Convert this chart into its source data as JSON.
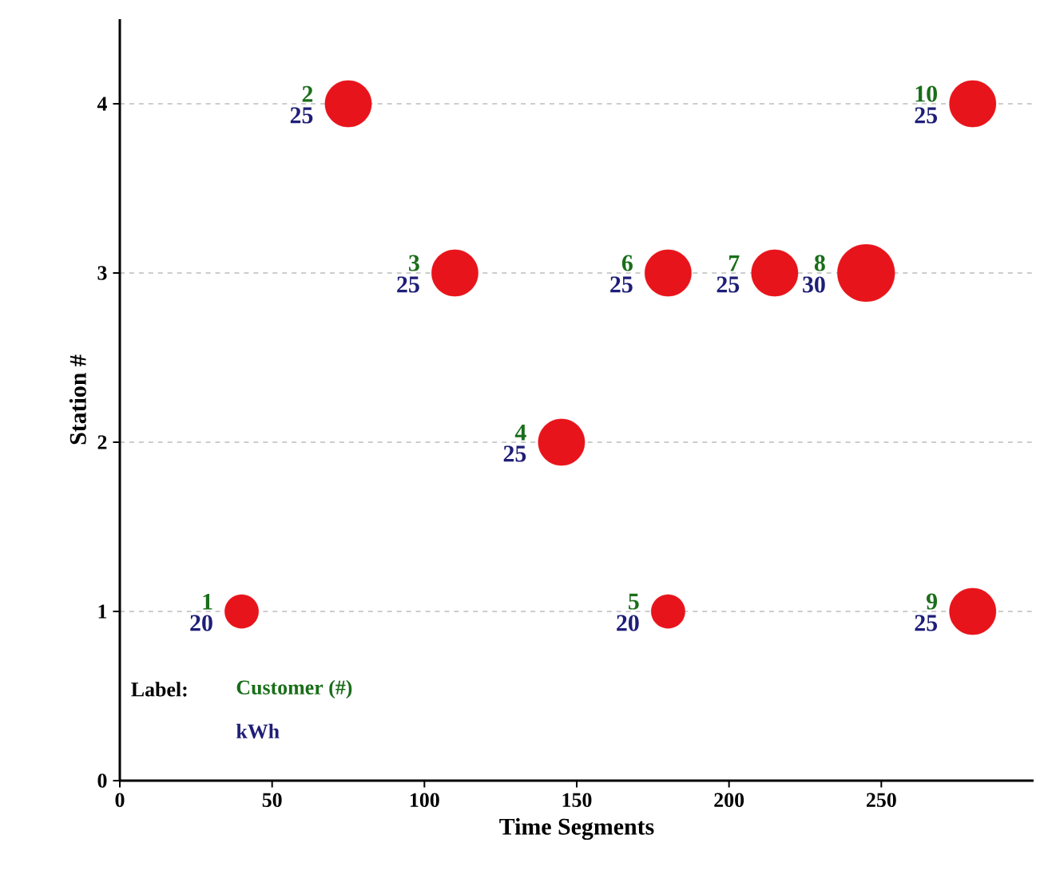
{
  "chart_data": {
    "type": "bubble",
    "xlabel": "Time Segments",
    "ylabel": "Station #",
    "x": [
      40,
      75,
      110,
      145,
      180,
      180,
      215,
      245,
      280,
      280
    ],
    "values": [
      1,
      4,
      3,
      2,
      1,
      3,
      3,
      3,
      1,
      4
    ],
    "sizes": [
      0.35,
      0.66,
      0.66,
      0.66,
      0.35,
      0.66,
      0.66,
      1,
      0.66,
      0.66
    ],
    "color": "#e8141b",
    "marker": "circle",
    "grid": "y",
    "xlim": [
      0,
      300
    ],
    "ylim": [
      0,
      4.5
    ],
    "xticks": [
      0,
      50,
      100,
      150,
      200,
      250
    ],
    "yticks": [
      0,
      1,
      2,
      3,
      4
    ],
    "annotations": [
      "Label:",
      "Customer (#)",
      "kWh",
      {
        "text": "1",
        "x": 40,
        "y": 1
      },
      {
        "text": "20",
        "x": 40,
        "y": 1
      },
      {
        "text": "2",
        "x": 75,
        "y": 4
      },
      {
        "text": "25",
        "x": 75,
        "y": 4
      },
      {
        "text": "3",
        "x": 110,
        "y": 3
      },
      {
        "text": "25",
        "x": 110,
        "y": 3
      },
      {
        "text": "4",
        "x": 145,
        "y": 2
      },
      {
        "text": "25",
        "x": 145,
        "y": 2
      },
      {
        "text": "5",
        "x": 180,
        "y": 1
      },
      {
        "text": "20",
        "x": 180,
        "y": 1
      },
      {
        "text": "6",
        "x": 180,
        "y": 3
      },
      {
        "text": "25",
        "x": 180,
        "y": 3
      },
      {
        "text": "7",
        "x": 215,
        "y": 3
      },
      {
        "text": "25",
        "x": 215,
        "y": 3
      },
      {
        "text": "8",
        "x": 245,
        "y": 3
      },
      {
        "text": "30",
        "x": 245,
        "y": 3
      },
      {
        "text": "9",
        "x": 280,
        "y": 1
      },
      {
        "text": "25",
        "x": 280,
        "y": 1
      },
      {
        "text": "10",
        "x": 280,
        "y": 4
      },
      {
        "text": "25",
        "x": 280,
        "y": 4
      }
    ]
  }
}
